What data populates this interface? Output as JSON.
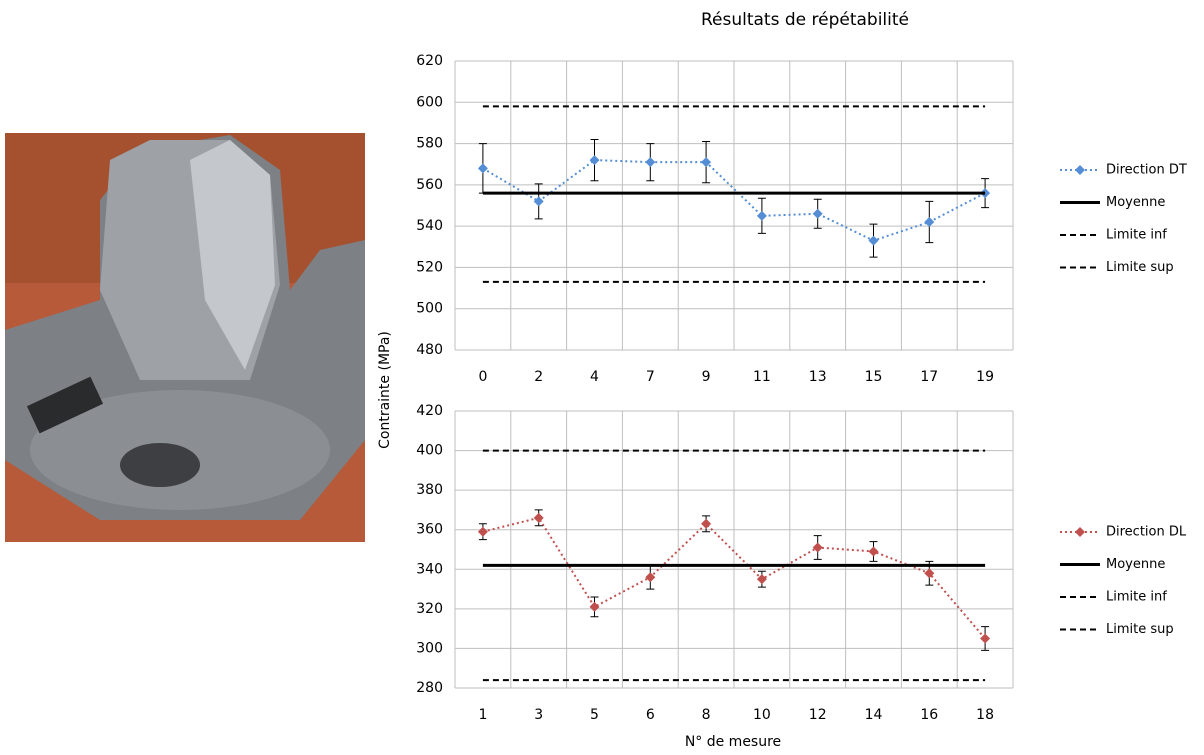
{
  "chart_data": [
    {
      "type": "line",
      "title": "Résultats de répétabilité",
      "ylabel": "Contrainte (MPa)",
      "categories": [
        "0",
        "2",
        "4",
        "7",
        "9",
        "11",
        "13",
        "15",
        "17",
        "19"
      ],
      "ylim": [
        480,
        620
      ],
      "yticks": [
        480,
        500,
        520,
        540,
        560,
        580,
        600,
        620
      ],
      "grid": true,
      "legend": "right",
      "series": [
        {
          "name": "Direction DT",
          "color": "#558ed5",
          "dash": "dotted",
          "marker": "diamond",
          "values": [
            568,
            552,
            572,
            571,
            571,
            545,
            546,
            533,
            542,
            556
          ],
          "errors": [
            12,
            8.5,
            10,
            9,
            10,
            8.5,
            7,
            8,
            10,
            7
          ]
        },
        {
          "name": "Moyenne",
          "color": "#000000",
          "dash": "solid",
          "values": [
            556,
            556,
            556,
            556,
            556,
            556,
            556,
            556,
            556,
            556
          ]
        },
        {
          "name": "Limite inf",
          "color": "#000000",
          "dash": "dashed",
          "values": [
            513,
            513,
            513,
            513,
            513,
            513,
            513,
            513,
            513,
            513
          ]
        },
        {
          "name": "Limite sup",
          "color": "#000000",
          "dash": "dashed",
          "values": [
            598,
            598,
            598,
            598,
            598,
            598,
            598,
            598,
            598,
            598
          ]
        }
      ]
    },
    {
      "type": "line",
      "xlabel": "N° de mesure",
      "categories": [
        "1",
        "3",
        "5",
        "6",
        "8",
        "10",
        "12",
        "14",
        "16",
        "18"
      ],
      "ylim": [
        280,
        420
      ],
      "yticks": [
        280,
        300,
        320,
        340,
        360,
        380,
        400,
        420
      ],
      "grid": true,
      "legend": "right",
      "series": [
        {
          "name": "Direction DL",
          "color": "#c0504d",
          "dash": "dotted",
          "marker": "diamond",
          "values": [
            359,
            366,
            321,
            336,
            363,
            335,
            351,
            349,
            338,
            305
          ],
          "errors": [
            4,
            4,
            5,
            6,
            4,
            4,
            6,
            5,
            6,
            6
          ]
        },
        {
          "name": "Moyenne",
          "color": "#000000",
          "dash": "solid",
          "values": [
            342,
            342,
            342,
            342,
            342,
            342,
            342,
            342,
            342,
            342
          ]
        },
        {
          "name": "Limite inf",
          "color": "#000000",
          "dash": "dashed",
          "values": [
            284,
            284,
            284,
            284,
            284,
            284,
            284,
            284,
            284,
            284
          ]
        },
        {
          "name": "Limite sup",
          "color": "#000000",
          "dash": "dashed",
          "values": [
            400,
            400,
            400,
            400,
            400,
            400,
            400,
            400,
            400,
            400
          ]
        }
      ]
    }
  ]
}
